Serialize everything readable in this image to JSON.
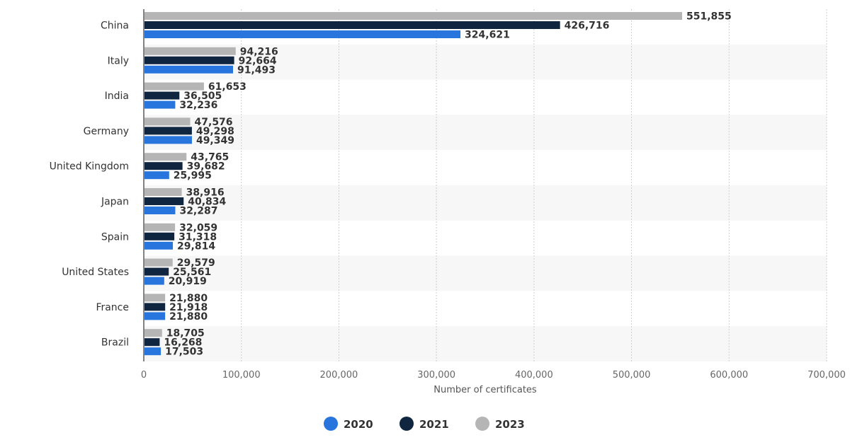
{
  "chart_data": {
    "type": "bar",
    "orientation": "horizontal",
    "categories": [
      "China",
      "Italy",
      "India",
      "Germany",
      "United Kingdom",
      "Japan",
      "Spain",
      "United States",
      "France",
      "Brazil"
    ],
    "series": [
      {
        "name": "2023",
        "color": "#b5b5b5",
        "values": [
          551855,
          94216,
          61653,
          47576,
          43765,
          38916,
          32059,
          29579,
          21880,
          18705
        ],
        "labels": [
          "551,855",
          "94,216",
          "61,653",
          "47,576",
          "43,765",
          "38,916",
          "32,059",
          "29,579",
          "21,880",
          "18,705"
        ]
      },
      {
        "name": "2021",
        "color": "#0f2540",
        "values": [
          426716,
          92664,
          36505,
          49298,
          39682,
          40834,
          31318,
          25561,
          21918,
          16268
        ],
        "labels": [
          "426,716",
          "92,664",
          "36,505",
          "49,298",
          "39,682",
          "40,834",
          "31,318",
          "25,561",
          "21,918",
          "16,268"
        ]
      },
      {
        "name": "2020",
        "color": "#2876dd",
        "values": [
          324621,
          91493,
          32236,
          49349,
          25995,
          32287,
          29814,
          20919,
          21880,
          17503
        ],
        "labels": [
          "324,621",
          "91,493",
          "32,236",
          "49,349",
          "25,995",
          "32,287",
          "29,814",
          "20,919",
          "21,880",
          "17,503"
        ]
      }
    ],
    "xlabel": "Number of certificates",
    "xlim": [
      0,
      700000
    ],
    "xticks": [
      0,
      100000,
      200000,
      300000,
      400000,
      500000,
      600000,
      700000
    ],
    "xtick_labels": [
      "0",
      "100,000",
      "200,000",
      "300,000",
      "400,000",
      "500,000",
      "600,000",
      "700,000"
    ],
    "grid": "vertical dotted",
    "legend": {
      "position": "bottom-center",
      "entries": [
        {
          "name": "2020",
          "color": "#2876dd"
        },
        {
          "name": "2021",
          "color": "#0f2540"
        },
        {
          "name": "2023",
          "color": "#b5b5b5"
        }
      ]
    }
  }
}
